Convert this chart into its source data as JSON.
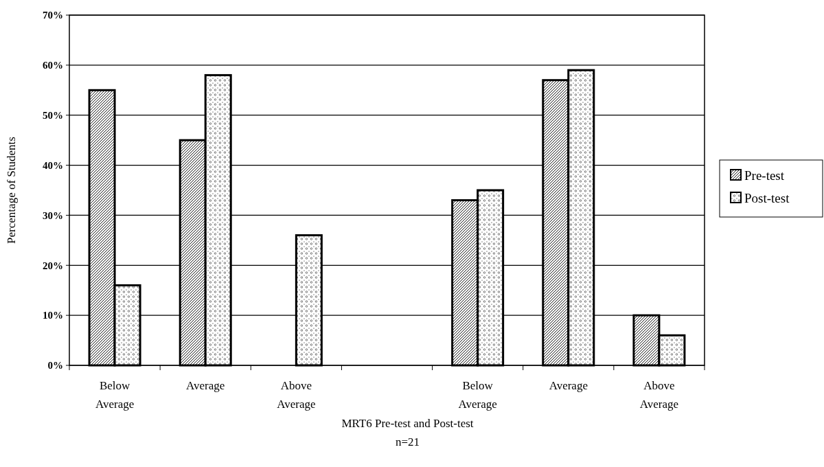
{
  "chart_data": {
    "type": "bar",
    "categories": [
      "Below\nAverage",
      "Average",
      "Above\nAverage",
      null,
      "Below\nAverage",
      "Average",
      "Above\nAverage"
    ],
    "series": [
      {
        "name": "Pre-test",
        "color": "#000000",
        "values": [
          55,
          45,
          null,
          null,
          33,
          57,
          10
        ]
      },
      {
        "name": "Post-test",
        "color": "#000000",
        "values": [
          16,
          58,
          26,
          null,
          35,
          59,
          6
        ]
      }
    ],
    "xlabel": "MRT6 Pre-test and Post-test\nn=21",
    "ylabel": "Percentage of Students",
    "ylim": [
      0,
      70
    ],
    "yticks": [
      {
        "value": 0,
        "label": "0%"
      },
      {
        "value": 10,
        "label": "10%"
      },
      {
        "value": 20,
        "label": "20%"
      },
      {
        "value": 30,
        "label": "30%"
      },
      {
        "value": 40,
        "label": "40%"
      },
      {
        "value": 50,
        "label": "50%"
      },
      {
        "value": 60,
        "label": "60%"
      },
      {
        "value": 70,
        "label": "70%"
      }
    ],
    "grid": "y",
    "legend": "right"
  }
}
